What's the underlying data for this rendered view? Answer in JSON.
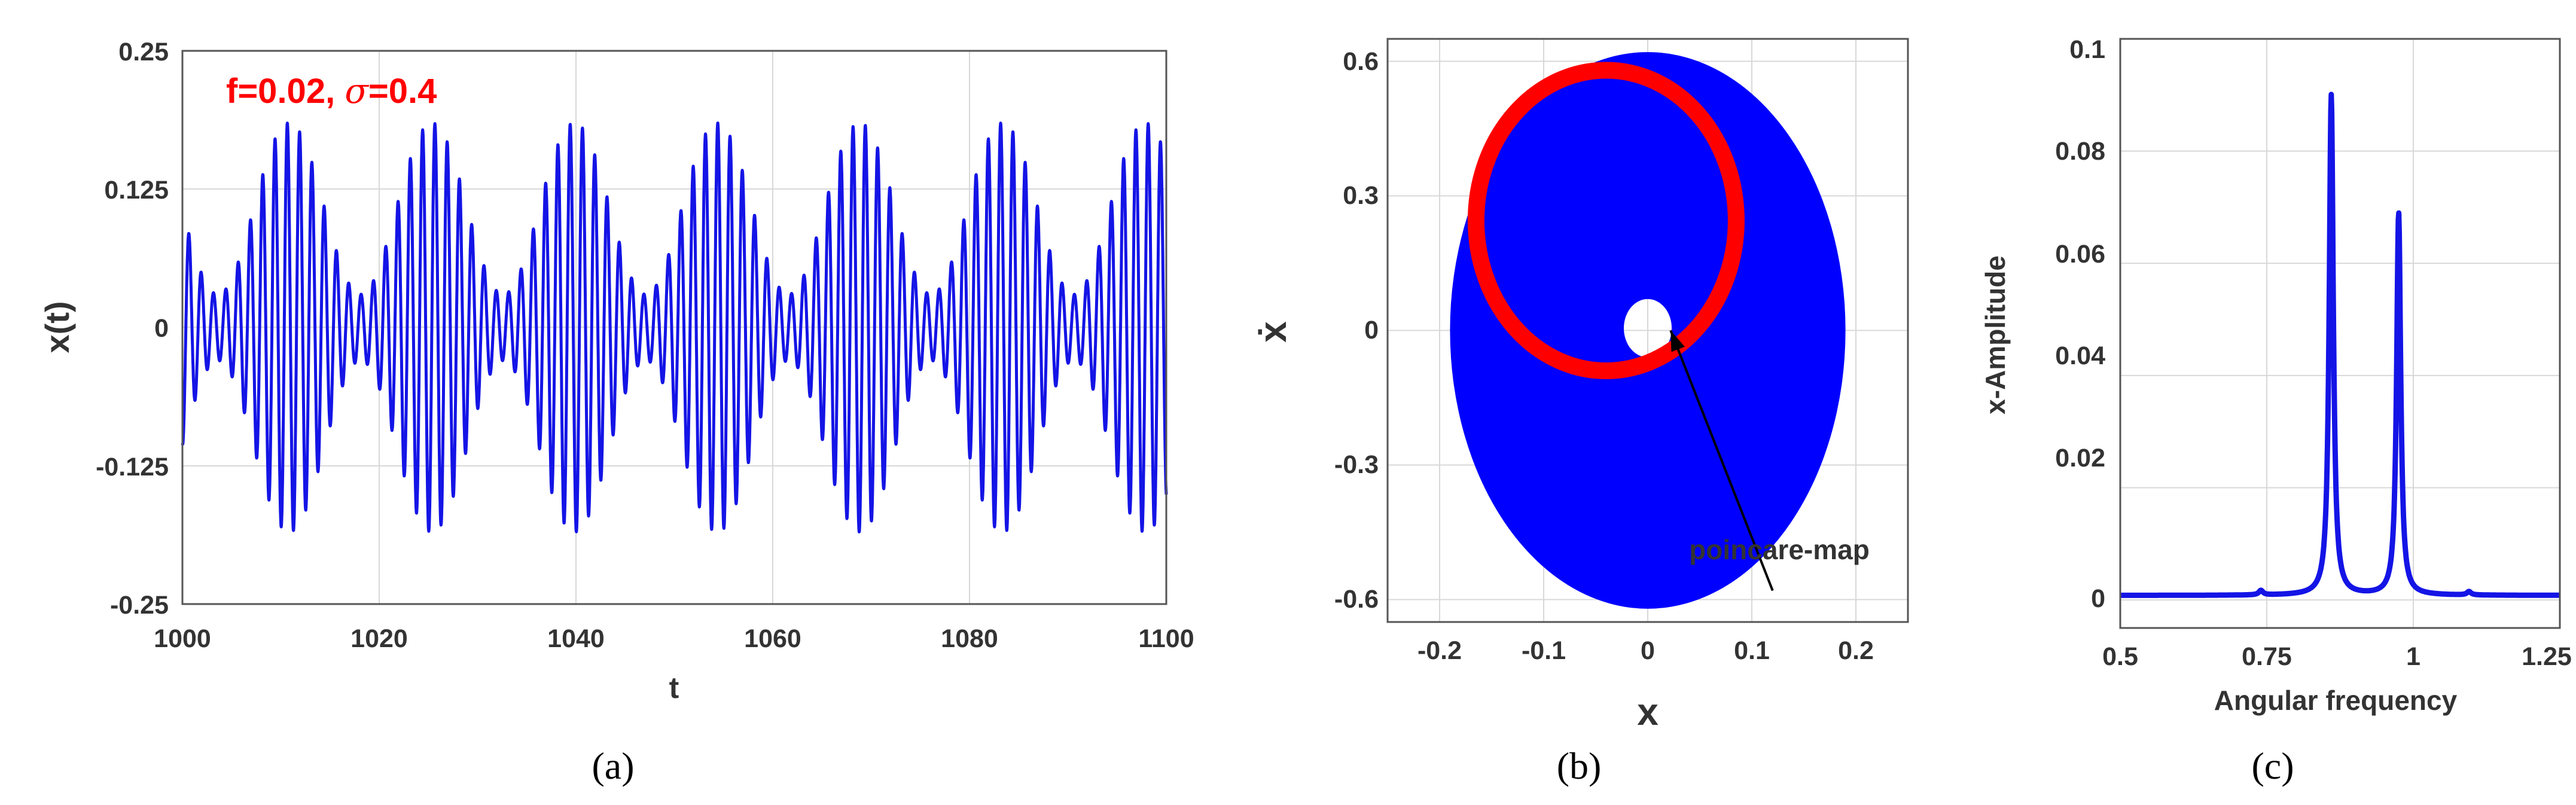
{
  "chart_data": [
    {
      "id": "a",
      "type": "line",
      "caption": "(a)",
      "xlabel": "t",
      "ylabel": "x(t)",
      "xlim": [
        1000,
        1100
      ],
      "ylim": [
        -0.25,
        0.25
      ],
      "xticks": [
        "1000",
        "1020",
        "1040",
        "1060",
        "1080",
        "1100"
      ],
      "yticks": [
        "0.25",
        "0.125",
        "0",
        "-0.125",
        "-0.25"
      ],
      "grid": true,
      "annotation": {
        "prefix": "f=0.02, ",
        "symbol": "σ",
        "suffix": "=0.4"
      },
      "signal": {
        "description": "beating oscillation",
        "carrier_period": 1.25,
        "envelope_period": 14.5,
        "max_amplitude": 0.185,
        "min_amplitude": 0.03
      },
      "series": [
        {
          "color": "#1414e6"
        }
      ]
    },
    {
      "id": "b",
      "type": "scatter",
      "caption": "(b)",
      "xlabel": "x",
      "ylabel": "ẋ",
      "xlim": [
        -0.25,
        0.25
      ],
      "ylim": [
        -0.65,
        0.65
      ],
      "xticks": [
        "-0.2",
        "-0.1",
        "0",
        "0.1",
        "0.2"
      ],
      "yticks": [
        "0.6",
        "0.3",
        "0",
        "-0.3",
        "-0.6"
      ],
      "grid": true,
      "phase_region": {
        "center": [
          0,
          0
        ],
        "x_radius": 0.19,
        "y_radius": 0.62,
        "hole_x_radius": 0.023,
        "hole_y_radius": 0.065,
        "hole_center_y": 0.005,
        "color": "#0000ff"
      },
      "poincare_map": {
        "center": [
          -0.04,
          0.245
        ],
        "x_radius": 0.125,
        "y_radius": 0.335,
        "color": "#ff0000"
      },
      "annotation": {
        "text": "poincare-map",
        "arrow_from": [
          0.12,
          -0.58
        ],
        "arrow_to": [
          0.022,
          0.0
        ]
      }
    },
    {
      "id": "c",
      "type": "line",
      "caption": "(c)",
      "xlabel": "Angular frequency",
      "ylabel": "x-Amplitude",
      "xlim": [
        0.5,
        1.25
      ],
      "ylim": [
        -0.005,
        0.1
      ],
      "xticks": [
        "0.5",
        "0.75",
        "1",
        "1.25"
      ],
      "yticks": [
        "0.1",
        "0.08",
        "0.06",
        "0.04",
        "0.02",
        "0"
      ],
      "grid": true,
      "peaks": [
        {
          "x": 0.86,
          "y": 0.09
        },
        {
          "x": 0.975,
          "y": 0.069
        }
      ],
      "baseline": 0.0008,
      "series": [
        {
          "color": "#1414e6"
        }
      ]
    }
  ]
}
